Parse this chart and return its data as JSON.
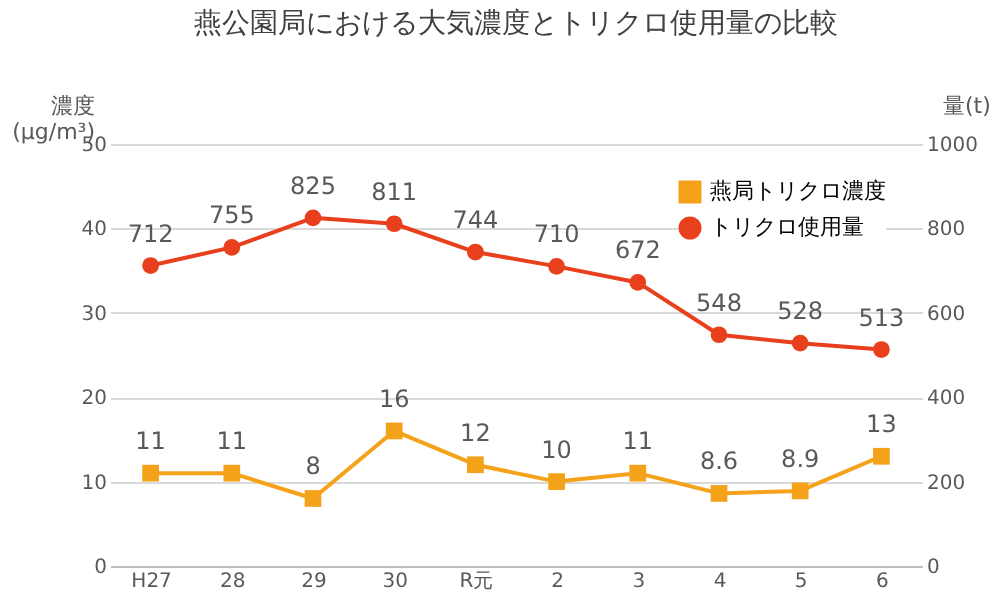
{
  "chart_data": {
    "type": "line",
    "title": "燕公園局における大気濃度とトリクロ使用量の比較",
    "ylabel": "濃度\n(μg/m³)",
    "y2label": "量(t)",
    "categories": [
      "H27",
      "28",
      "29",
      "30",
      "R元",
      "2",
      "3",
      "4",
      "5",
      "6"
    ],
    "series": [
      {
        "name": "燕局トリクロ濃度",
        "color": "#f5a21b",
        "marker": "square",
        "values": [
          11,
          11,
          8,
          16,
          12,
          10,
          11,
          8.6,
          8.9,
          13
        ]
      },
      {
        "name": "トリクロ使用量",
        "color": "#e8401c",
        "marker": "circle",
        "axis": "y2",
        "values": [
          712,
          755,
          825,
          811,
          744,
          710,
          672,
          548,
          528,
          513
        ]
      }
    ],
    "ylim": [
      0,
      50
    ],
    "yticks": [
      0,
      10,
      20,
      30,
      40,
      50
    ],
    "y2lim": [
      0,
      1000
    ],
    "y2ticks": [
      0,
      200,
      400,
      600,
      800,
      1000
    ],
    "grid": "y",
    "legend": "top right",
    "data_labels": true
  }
}
